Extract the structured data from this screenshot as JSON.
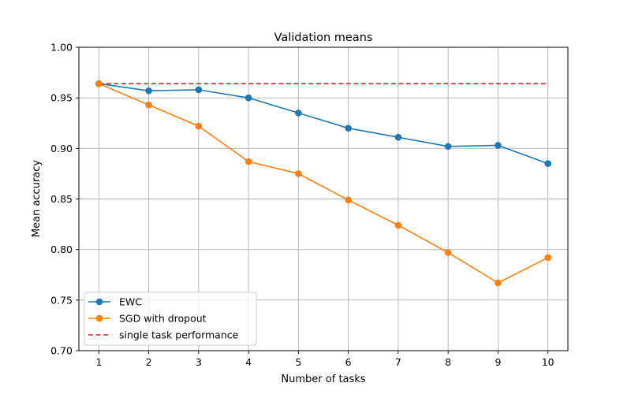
{
  "chart_data": {
    "type": "line",
    "title": "Validation means",
    "xlabel": "Number of tasks",
    "ylabel": "Mean accuracy",
    "x": [
      1,
      2,
      3,
      4,
      5,
      6,
      7,
      8,
      9,
      10
    ],
    "xlim": [
      0.6,
      10.4
    ],
    "ylim": [
      0.7,
      1.0
    ],
    "xticks": [
      "1",
      "2",
      "3",
      "4",
      "5",
      "6",
      "7",
      "8",
      "9",
      "10"
    ],
    "yticks": [
      "0.70",
      "0.75",
      "0.80",
      "0.85",
      "0.90",
      "0.95",
      "1.00"
    ],
    "grid": true,
    "legend_position": "lower-left",
    "series": [
      {
        "name": "EWC",
        "color": "#1f77b4",
        "style": "line-marker",
        "values": [
          0.964,
          0.957,
          0.958,
          0.95,
          0.935,
          0.92,
          0.911,
          0.902,
          0.903,
          0.885
        ]
      },
      {
        "name": "SGD with dropout",
        "color": "#ff7f0e",
        "style": "line-marker",
        "values": [
          0.964,
          0.943,
          0.922,
          0.887,
          0.875,
          0.849,
          0.824,
          0.797,
          0.767,
          0.792
        ]
      },
      {
        "name": "single task performance",
        "color": "#d62728",
        "style": "dashed",
        "values": [
          0.964,
          0.964,
          0.964,
          0.964,
          0.964,
          0.964,
          0.964,
          0.964,
          0.964,
          0.964
        ]
      }
    ]
  }
}
